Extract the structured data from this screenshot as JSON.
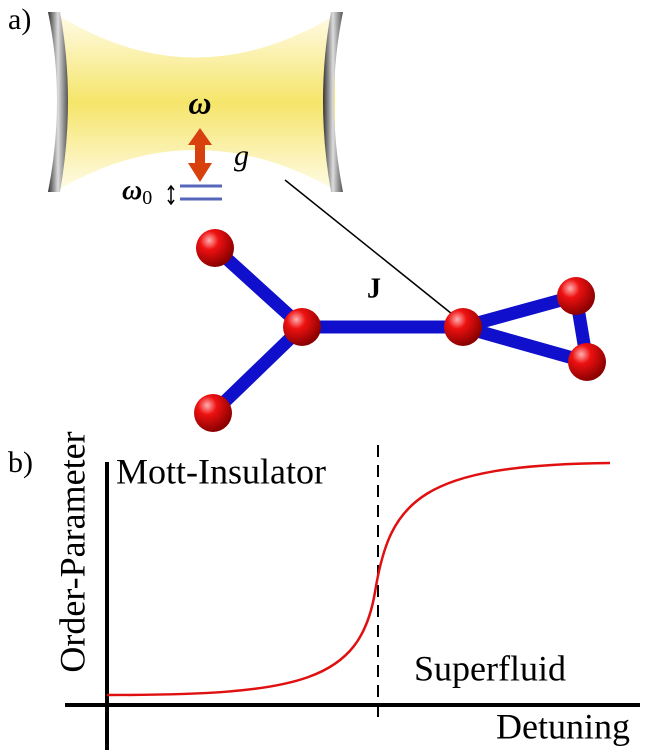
{
  "panel_a": {
    "label": "a)",
    "cavity_frequency": "ω",
    "coupling": "g",
    "atom_frequency": {
      "base": "ω",
      "sub": "0"
    },
    "hopping": "J"
  },
  "panel_b": {
    "label": "b)",
    "y_axis_label": "Order-Parameter",
    "x_axis_label": "Detuning",
    "left_phase": "Mott-Insulator",
    "right_phase": "Superfluid"
  }
}
